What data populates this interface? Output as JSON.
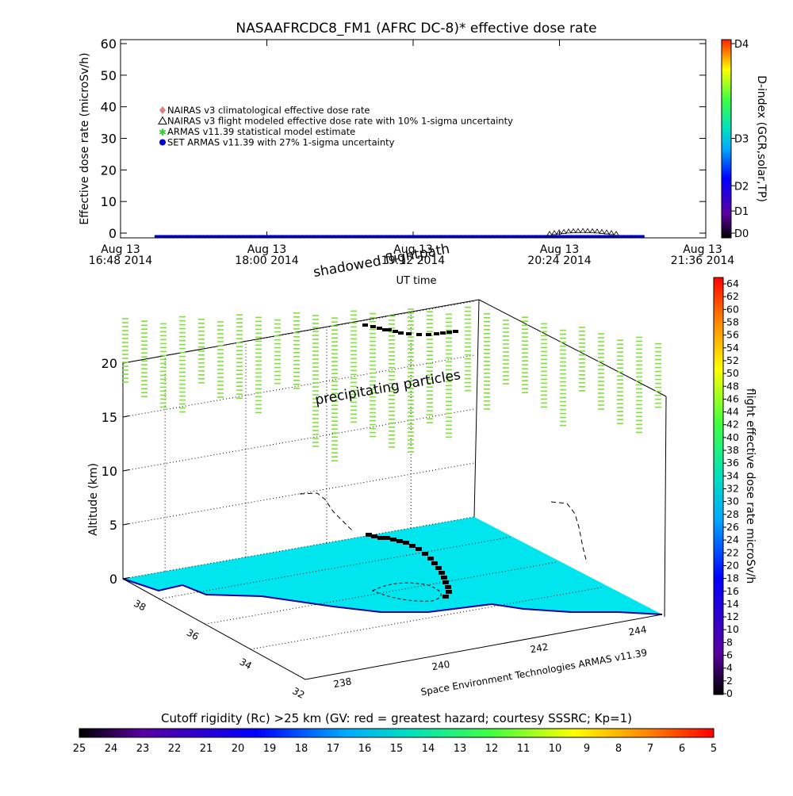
{
  "title": "NASAAFRCDC8_FM1 (AFRC DC-8)* effective dose rate",
  "chart_data": [
    {
      "type": "line",
      "ylabel": "Effective dose rate (microSv/h)",
      "xlabel": "UT time",
      "ylim": [
        0,
        60
      ],
      "yticks": [
        "0",
        "10",
        "20",
        "30",
        "40",
        "50",
        "60"
      ],
      "xticks": [
        {
          "l1": "Aug 13",
          "l2": "16:48 2014"
        },
        {
          "l1": "Aug 13",
          "l2": "18:00 2014"
        },
        {
          "l1": "Aug 13",
          "l2": "19:12 2014"
        },
        {
          "l1": "Aug 13",
          "l2": "20:24 2014"
        },
        {
          "l1": "Aug 13",
          "l2": "21:36 2014"
        }
      ],
      "legend": [
        {
          "text": "NAIRAS v3 climatological effective dose rate",
          "color": "#e08080",
          "marker": "diamond"
        },
        {
          "text": "NAIRAS v3 flight modeled effective dose rate with 10% 1-sigma uncertainty",
          "color": "#000000",
          "marker": "triangle"
        },
        {
          "text": "ARMAS v11.39 statistical model estimate",
          "color": "#33cc33",
          "marker": "star"
        },
        {
          "text": "SET ARMAS v11.39 with 27% 1-sigma uncertainty",
          "color": "#0000cc",
          "marker": "circle"
        }
      ],
      "series": [
        {
          "name": "SET ARMAS v11.39 with 27% 1-sigma uncertainty",
          "x_fraction_range": [
            0.06,
            0.895
          ],
          "values_approx": 0
        },
        {
          "name": "NAIRAS v3 flight modeled effective dose rate with 10% 1-sigma uncertainty",
          "bump_center_fraction": 0.79,
          "bump_peak": 1.2
        }
      ],
      "dindex_colorbar": {
        "title": "D-index (GCR,solar,TP)",
        "labels": [
          "D4",
          "D3",
          "D2",
          "D1",
          "D0"
        ],
        "label_values": [
          60,
          30,
          15,
          7,
          0
        ]
      }
    },
    {
      "type": "scatter",
      "ylabel": "Altitude (km)",
      "zticks": [
        "0",
        "5",
        "10",
        "15",
        "20"
      ],
      "lat_ticks": [
        "38",
        "36",
        "34",
        "32"
      ],
      "lon_ticks": [
        "238",
        "240",
        "242",
        "244"
      ],
      "annotations": [
        "shadowed flightpath",
        "precipitating particles"
      ],
      "credit": "Space Environment Technologies ARMAS v11.39",
      "dose_colorbar": {
        "title": "flight effective dose rate microSv/h",
        "min": 0,
        "max": 64,
        "labels": [
          "64",
          "62",
          "60",
          "58",
          "56",
          "54",
          "52",
          "50",
          "48",
          "46",
          "44",
          "42",
          "40",
          "38",
          "36",
          "34",
          "32",
          "30",
          "28",
          "26",
          "24",
          "22",
          "20",
          "18",
          "16",
          "14",
          "12",
          "10",
          "8",
          "6",
          "4",
          "2",
          "0"
        ]
      },
      "cutoff_colorbar": {
        "title": "Cutoff rigidity (Rc) >25 km (GV: red = greatest hazard; courtesy SSSRC; Kp=1)",
        "labels": [
          "25",
          "24",
          "23",
          "22",
          "21",
          "20",
          "19",
          "18",
          "17",
          "16",
          "15",
          "14",
          "13",
          "12",
          "11",
          "10",
          "9",
          "8",
          "7",
          "6",
          "5"
        ]
      },
      "colors": {
        "ocean": "#00e5ee",
        "coast": "#0000a0",
        "particles": "#7fe03a"
      }
    }
  ]
}
